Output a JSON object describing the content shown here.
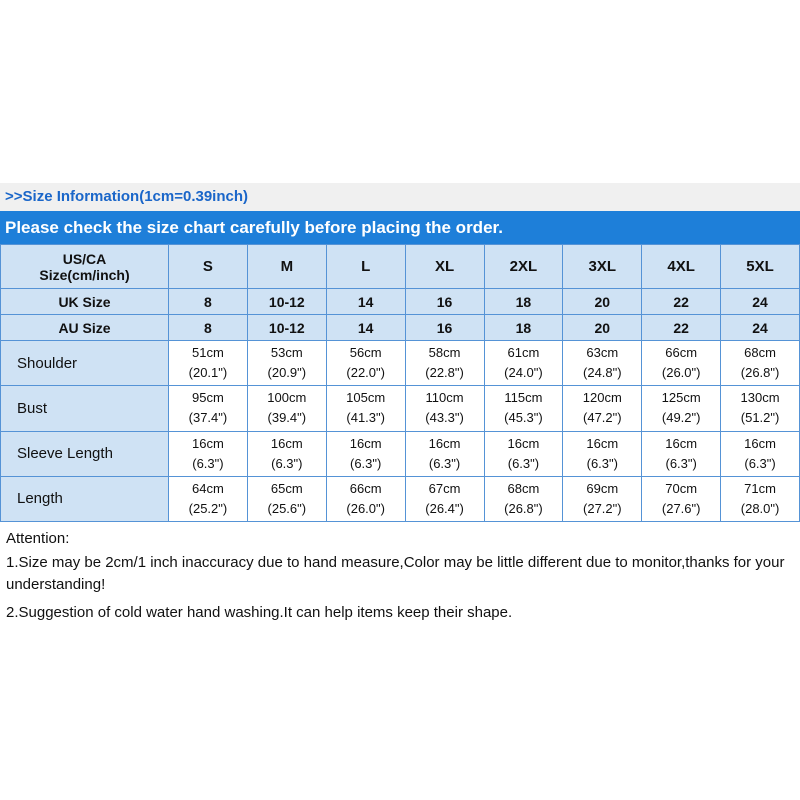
{
  "header": {
    "size_info_label": ">>Size Information(1cm=0.39inch)",
    "banner": "Please check the size chart carefully before placing the order."
  },
  "table": {
    "corner_label": "US/CA\nSize(cm/inch)",
    "size_headers": [
      "S",
      "M",
      "L",
      "XL",
      "2XL",
      "3XL",
      "4XL",
      "5XL"
    ],
    "size_rows": [
      {
        "label": "UK Size",
        "values": [
          "8",
          "10-12",
          "14",
          "16",
          "18",
          "20",
          "22",
          "24"
        ]
      },
      {
        "label": "AU Size",
        "values": [
          "8",
          "10-12",
          "14",
          "16",
          "18",
          "20",
          "22",
          "24"
        ]
      }
    ],
    "measure_rows": [
      {
        "label": "Shoulder",
        "values": [
          "51cm\n(20.1\")",
          "53cm\n(20.9\")",
          "56cm\n(22.0\")",
          "58cm\n(22.8\")",
          "61cm\n(24.0\")",
          "63cm\n(24.8\")",
          "66cm\n(26.0\")",
          "68cm\n(26.8\")"
        ]
      },
      {
        "label": "Bust",
        "values": [
          "95cm\n(37.4\")",
          "100cm\n(39.4\")",
          "105cm\n(41.3\")",
          "110cm\n(43.3\")",
          "115cm\n(45.3\")",
          "120cm\n(47.2\")",
          "125cm\n(49.2\")",
          "130cm\n(51.2\")"
        ]
      },
      {
        "label": "Sleeve Length",
        "values": [
          "16cm\n(6.3\")",
          "16cm\n(6.3\")",
          "16cm\n(6.3\")",
          "16cm\n(6.3\")",
          "16cm\n(6.3\")",
          "16cm\n(6.3\")",
          "16cm\n(6.3\")",
          "16cm\n(6.3\")"
        ]
      },
      {
        "label": "Length",
        "values": [
          "64cm\n(25.2\")",
          "65cm\n(25.6\")",
          "66cm\n(26.0\")",
          "67cm\n(26.4\")",
          "68cm\n(26.8\")",
          "69cm\n(27.2\")",
          "70cm\n(27.6\")",
          "71cm\n(28.0\")"
        ]
      }
    ]
  },
  "attention": {
    "title": "Attention:",
    "lines": [
      "1.Size may be 2cm/1 inch inaccuracy due to hand measure,Color may be little different due to monitor,thanks for your understanding!",
      "2.Suggestion of cold water hand washing.It can help items keep their shape."
    ]
  },
  "colors": {
    "accent-blue": "#1a66c9",
    "banner-bg": "#1e7fd9",
    "cell-blue": "#cfe2f4",
    "table-border": "#5593d6",
    "bar-gray": "#f0f0f0"
  }
}
